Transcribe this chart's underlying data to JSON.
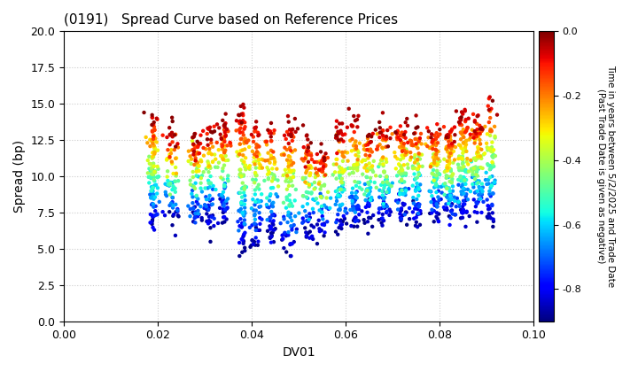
{
  "title": "(0191)   Spread Curve based on Reference Prices",
  "xlabel": "DV01",
  "ylabel": "Spread (bp)",
  "xlim": [
    0.0,
    0.1
  ],
  "ylim": [
    0.0,
    20.0
  ],
  "xticks": [
    0.0,
    0.02,
    0.04,
    0.06,
    0.08,
    0.1
  ],
  "yticks": [
    0.0,
    2.5,
    5.0,
    7.5,
    10.0,
    12.5,
    15.0,
    17.5,
    20.0
  ],
  "colorbar_label_line1": "Time in years between 5/2/2025 and Trade Date",
  "colorbar_label_line2": "(Past Trade Date is given as negative)",
  "cbar_ticks": [
    0.0,
    -0.2,
    -0.4,
    -0.6,
    -0.8
  ],
  "cmap": "jet",
  "color_min": -0.9,
  "color_max": 0.0,
  "background_color": "#ffffff",
  "grid_color": "#cccccc",
  "marker_size": 10,
  "cluster_groups": [
    [
      0.019,
      0.0006,
      14.5,
      8.2,
      6.5,
      120
    ],
    [
      0.023,
      0.0008,
      13.0,
      8.5,
      7.0,
      80
    ],
    [
      0.028,
      0.0007,
      13.0,
      8.3,
      6.8,
      90
    ],
    [
      0.031,
      0.0007,
      13.5,
      8.5,
      7.0,
      80
    ],
    [
      0.034,
      0.0006,
      13.5,
      8.8,
      7.2,
      90
    ],
    [
      0.038,
      0.0007,
      14.5,
      9.5,
      5.0,
      110
    ],
    [
      0.041,
      0.0006,
      14.0,
      9.2,
      5.5,
      90
    ],
    [
      0.044,
      0.0007,
      13.5,
      9.0,
      6.0,
      90
    ],
    [
      0.048,
      0.0008,
      13.5,
      9.0,
      4.8,
      110
    ],
    [
      0.052,
      0.0007,
      12.5,
      9.0,
      6.0,
      80
    ],
    [
      0.055,
      0.0007,
      11.5,
      8.8,
      6.5,
      80
    ],
    [
      0.059,
      0.0008,
      13.5,
      9.0,
      6.2,
      100
    ],
    [
      0.062,
      0.0007,
      14.0,
      9.2,
      6.5,
      90
    ],
    [
      0.065,
      0.0006,
      13.0,
      9.0,
      7.0,
      80
    ],
    [
      0.068,
      0.0008,
      13.5,
      9.2,
      7.0,
      100
    ],
    [
      0.072,
      0.0007,
      13.5,
      9.5,
      7.0,
      110
    ],
    [
      0.075,
      0.0006,
      13.5,
      9.2,
      7.0,
      90
    ],
    [
      0.079,
      0.0007,
      13.5,
      9.5,
      7.2,
      120
    ],
    [
      0.082,
      0.0006,
      13.5,
      9.5,
      6.8,
      110
    ],
    [
      0.085,
      0.0007,
      14.5,
      9.5,
      7.0,
      120
    ],
    [
      0.088,
      0.0007,
      14.0,
      9.5,
      7.2,
      110
    ],
    [
      0.091,
      0.0006,
      15.5,
      9.5,
      7.0,
      80
    ]
  ]
}
